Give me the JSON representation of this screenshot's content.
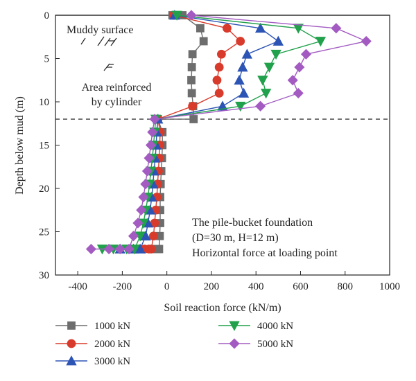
{
  "chart_data": {
    "type": "line",
    "xlabel": "Soil reaction force (kN/m)",
    "ylabel": "Depth below mud (m)",
    "xlim": [
      -500,
      1000
    ],
    "ylim": [
      0,
      30
    ],
    "y_inverted": true,
    "xticks": [
      "-400",
      "-200",
      "0",
      "200",
      "400",
      "600",
      "800",
      "1000"
    ],
    "xtick_values": [
      -400,
      -200,
      0,
      200,
      400,
      600,
      800,
      1000
    ],
    "yticks": [
      "0",
      "5",
      "10",
      "15",
      "20",
      "25",
      "30"
    ],
    "ytick_values": [
      0,
      5,
      10,
      15,
      20,
      25,
      30
    ],
    "grid": false,
    "legend_position": "bottom",
    "annotations": {
      "mud_surface": "Muddy surface",
      "reinforced_line1": "Area reinforced",
      "reinforced_line2": "by cylinder",
      "info_line1": "The pile-bucket foundation",
      "info_line2": "(D=30 m, H=12 m)",
      "info_line3": "Horizontal force at loading point"
    },
    "mud_line_depth": 0,
    "bucket_bottom_depth": 12,
    "series": [
      {
        "name": "1000 kN",
        "color": "#6d6d6d",
        "marker": "square",
        "x": [
          25,
          70,
          150,
          165,
          115,
          112,
          110,
          112,
          118,
          120,
          -40,
          -20,
          -20,
          -22,
          -25,
          -28,
          -30,
          -30,
          -30,
          -32,
          -35,
          -38,
          -40,
          -45,
          -50
        ],
        "y": [
          0,
          0,
          1.5,
          3,
          4.5,
          6,
          7.5,
          9,
          10.5,
          12,
          12,
          13.5,
          15,
          16.5,
          18,
          19.5,
          21,
          22.5,
          24,
          25.5,
          27,
          27,
          27,
          27,
          27
        ]
      },
      {
        "name": "2000 kN",
        "color": "#d83b2b",
        "marker": "circle",
        "x": [
          30,
          270,
          330,
          245,
          235,
          225,
          235,
          115,
          -40,
          -30,
          -32,
          -35,
          -38,
          -42,
          -45,
          -50,
          -55,
          -60,
          -70,
          -80,
          -100,
          -130
        ],
        "y": [
          0,
          1.5,
          3,
          4.5,
          6,
          7.5,
          9,
          10.5,
          12,
          13.5,
          15,
          16.5,
          18,
          19.5,
          21,
          22.5,
          24,
          25.5,
          27,
          27,
          27,
          27
        ]
      },
      {
        "name": "3000 kN",
        "color": "#2c54b5",
        "marker": "triangle-up",
        "x": [
          35,
          420,
          500,
          360,
          340,
          325,
          345,
          250,
          -40,
          -45,
          -48,
          -52,
          -58,
          -62,
          -68,
          -75,
          -85,
          -95,
          -120,
          -150,
          -210
        ],
        "y": [
          0,
          1.5,
          3,
          4.5,
          6,
          7.5,
          9,
          10.5,
          12,
          13.5,
          15,
          16.5,
          18,
          19.5,
          21,
          22.5,
          24,
          25.5,
          27,
          27,
          27
        ]
      },
      {
        "name": "4000 kN",
        "color": "#21a14b",
        "marker": "triangle-down",
        "x": [
          45,
          590,
          690,
          490,
          460,
          430,
          445,
          330,
          -50,
          -55,
          -60,
          -65,
          -72,
          -78,
          -85,
          -95,
          -105,
          -120,
          -145,
          -180,
          -240,
          -290
        ],
        "y": [
          0,
          1.5,
          3,
          4.5,
          6,
          7.5,
          9,
          10.5,
          12,
          13.5,
          15,
          16.5,
          18,
          19.5,
          21,
          22.5,
          24,
          25.5,
          27,
          27,
          27,
          27
        ]
      },
      {
        "name": "5000 kN",
        "color": "#a35bc2",
        "marker": "diamond",
        "x": [
          110,
          760,
          895,
          625,
          595,
          565,
          590,
          420,
          -55,
          -65,
          -72,
          -80,
          -88,
          -96,
          -105,
          -115,
          -130,
          -150,
          -170,
          -210,
          -260,
          -340
        ],
        "y": [
          0,
          1.5,
          3,
          4.5,
          6,
          7.5,
          9,
          10.5,
          12,
          13.5,
          15,
          16.5,
          18,
          19.5,
          21,
          22.5,
          24,
          25.5,
          27,
          27,
          27,
          27
        ]
      }
    ]
  }
}
